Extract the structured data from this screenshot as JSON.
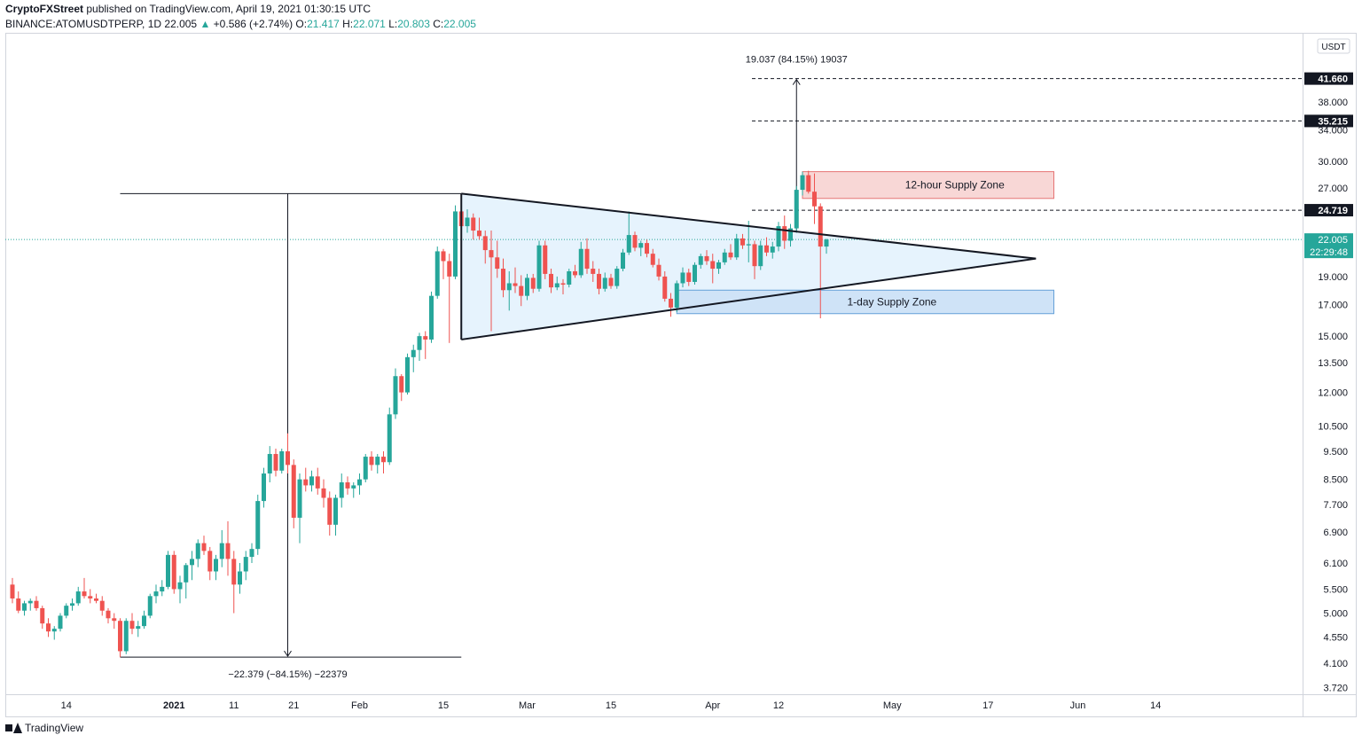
{
  "header": {
    "author": "CryptoFXStreet",
    "published": "published on TradingView.com, April 19, 2021 01:30:15 UTC"
  },
  "symbol_line": {
    "symbol": "BINANCE:ATOMUSDTPERP, 1D",
    "last": "22.005",
    "change": "+0.586 (+2.74%)",
    "o_label": "O:",
    "o": "21.417",
    "h_label": "H:",
    "h": "22.071",
    "l_label": "L:",
    "l": "20.803",
    "c_label": "C:",
    "c": "22.005"
  },
  "footer": {
    "brand": "TradingView"
  },
  "colors": {
    "up": "#26a69a",
    "down": "#ef5350",
    "triangle_fill": "#e3f2fd",
    "supply_red": "#f8d7d6",
    "supply_blue": "#cfe3f7",
    "last_price": "#26a69a"
  },
  "chart_data": {
    "type": "candlestick",
    "y_scale": "log",
    "currency_badge": "USDT",
    "ylim": [
      3.6,
      48
    ],
    "y_ticks": [
      "3.720",
      "4.100",
      "4.550",
      "5.000",
      "5.500",
      "6.100",
      "6.900",
      "7.700",
      "8.500",
      "9.500",
      "10.500",
      "12.000",
      "13.500",
      "15.000",
      "17.000",
      "19.000",
      "27.000",
      "30.000",
      "34.000",
      "38.000"
    ],
    "x_ticks": [
      "14",
      "2021",
      "11",
      "21",
      "Feb",
      "15",
      "Mar",
      "15",
      "Apr",
      "12",
      "May",
      "17",
      "Jun",
      "14"
    ],
    "candles": [
      {
        "date": "2020-12-05",
        "o": 5.6,
        "h": 5.75,
        "l": 5.2,
        "c": 5.3
      },
      {
        "date": "2020-12-06",
        "o": 5.3,
        "h": 5.45,
        "l": 5.0,
        "c": 5.05
      },
      {
        "date": "2020-12-07",
        "o": 5.05,
        "h": 5.25,
        "l": 4.95,
        "c": 5.2
      },
      {
        "date": "2020-12-08",
        "o": 5.2,
        "h": 5.3,
        "l": 5.05,
        "c": 5.25
      },
      {
        "date": "2020-12-09",
        "o": 5.25,
        "h": 5.35,
        "l": 5.05,
        "c": 5.1
      },
      {
        "date": "2020-12-10",
        "o": 5.1,
        "h": 5.15,
        "l": 4.7,
        "c": 4.8
      },
      {
        "date": "2020-12-11",
        "o": 4.8,
        "h": 4.9,
        "l": 4.55,
        "c": 4.65
      },
      {
        "date": "2020-12-12",
        "o": 4.65,
        "h": 4.75,
        "l": 4.5,
        "c": 4.7
      },
      {
        "date": "2020-12-13",
        "o": 4.7,
        "h": 5.0,
        "l": 4.65,
        "c": 4.95
      },
      {
        "date": "2020-12-14",
        "o": 4.95,
        "h": 5.2,
        "l": 4.9,
        "c": 5.15
      },
      {
        "date": "2020-12-15",
        "o": 5.15,
        "h": 5.3,
        "l": 5.05,
        "c": 5.2
      },
      {
        "date": "2020-12-16",
        "o": 5.2,
        "h": 5.55,
        "l": 5.15,
        "c": 5.45
      },
      {
        "date": "2020-12-17",
        "o": 5.45,
        "h": 5.75,
        "l": 5.3,
        "c": 5.35
      },
      {
        "date": "2020-12-18",
        "o": 5.35,
        "h": 5.5,
        "l": 5.2,
        "c": 5.3
      },
      {
        "date": "2020-12-19",
        "o": 5.3,
        "h": 5.4,
        "l": 5.2,
        "c": 5.25
      },
      {
        "date": "2020-12-20",
        "o": 5.25,
        "h": 5.35,
        "l": 4.95,
        "c": 5.05
      },
      {
        "date": "2020-12-21",
        "o": 5.05,
        "h": 5.1,
        "l": 4.8,
        "c": 4.9
      },
      {
        "date": "2020-12-22",
        "o": 4.9,
        "h": 5.0,
        "l": 4.7,
        "c": 4.85
      },
      {
        "date": "2020-12-23",
        "o": 4.85,
        "h": 4.9,
        "l": 4.2,
        "c": 4.3
      },
      {
        "date": "2020-12-24",
        "o": 4.3,
        "h": 4.9,
        "l": 4.25,
        "c": 4.85
      },
      {
        "date": "2020-12-25",
        "o": 4.85,
        "h": 5.0,
        "l": 4.6,
        "c": 4.7
      },
      {
        "date": "2020-12-26",
        "o": 4.7,
        "h": 4.85,
        "l": 4.55,
        "c": 4.75
      },
      {
        "date": "2020-12-27",
        "o": 4.75,
        "h": 5.05,
        "l": 4.7,
        "c": 4.95
      },
      {
        "date": "2020-12-28",
        "o": 4.95,
        "h": 5.4,
        "l": 4.9,
        "c": 5.35
      },
      {
        "date": "2020-12-29",
        "o": 5.35,
        "h": 5.6,
        "l": 5.2,
        "c": 5.45
      },
      {
        "date": "2020-12-30",
        "o": 5.45,
        "h": 5.7,
        "l": 5.35,
        "c": 5.55
      },
      {
        "date": "2020-12-31",
        "o": 5.55,
        "h": 6.4,
        "l": 5.5,
        "c": 6.3
      },
      {
        "date": "2021-01-01",
        "o": 6.3,
        "h": 6.4,
        "l": 5.4,
        "c": 5.5
      },
      {
        "date": "2021-01-02",
        "o": 5.5,
        "h": 5.8,
        "l": 5.2,
        "c": 5.65
      },
      {
        "date": "2021-01-03",
        "o": 5.65,
        "h": 6.1,
        "l": 5.3,
        "c": 6.05
      },
      {
        "date": "2021-01-04",
        "o": 6.05,
        "h": 6.4,
        "l": 5.7,
        "c": 6.2
      },
      {
        "date": "2021-01-05",
        "o": 6.2,
        "h": 6.7,
        "l": 6.0,
        "c": 6.6
      },
      {
        "date": "2021-01-06",
        "o": 6.6,
        "h": 6.8,
        "l": 6.3,
        "c": 6.4
      },
      {
        "date": "2021-01-07",
        "o": 6.4,
        "h": 6.5,
        "l": 5.7,
        "c": 5.9
      },
      {
        "date": "2021-01-08",
        "o": 5.9,
        "h": 6.3,
        "l": 5.7,
        "c": 6.2
      },
      {
        "date": "2021-01-09",
        "o": 6.2,
        "h": 6.95,
        "l": 6.0,
        "c": 6.6
      },
      {
        "date": "2021-01-10",
        "o": 6.6,
        "h": 7.2,
        "l": 5.8,
        "c": 6.2
      },
      {
        "date": "2021-01-11",
        "o": 6.2,
        "h": 6.4,
        "l": 5.0,
        "c": 5.6
      },
      {
        "date": "2021-01-12",
        "o": 5.6,
        "h": 6.1,
        "l": 5.4,
        "c": 5.9
      },
      {
        "date": "2021-01-13",
        "o": 5.9,
        "h": 6.4,
        "l": 5.7,
        "c": 6.25
      },
      {
        "date": "2021-01-14",
        "o": 6.25,
        "h": 6.6,
        "l": 6.1,
        "c": 6.45
      },
      {
        "date": "2021-01-15",
        "o": 6.45,
        "h": 8.0,
        "l": 6.3,
        "c": 7.8
      },
      {
        "date": "2021-01-16",
        "o": 7.8,
        "h": 8.9,
        "l": 7.6,
        "c": 8.7
      },
      {
        "date": "2021-01-17",
        "o": 8.7,
        "h": 9.7,
        "l": 8.4,
        "c": 9.4
      },
      {
        "date": "2021-01-18",
        "o": 9.4,
        "h": 9.6,
        "l": 8.6,
        "c": 8.8
      },
      {
        "date": "2021-01-19",
        "o": 8.8,
        "h": 9.6,
        "l": 8.7,
        "c": 9.5
      },
      {
        "date": "2021-01-20",
        "o": 9.5,
        "h": 10.2,
        "l": 8.7,
        "c": 9.0
      },
      {
        "date": "2021-01-21",
        "o": 9.0,
        "h": 9.2,
        "l": 7.0,
        "c": 7.3
      },
      {
        "date": "2021-01-22",
        "o": 7.3,
        "h": 8.7,
        "l": 6.6,
        "c": 8.5
      },
      {
        "date": "2021-01-23",
        "o": 8.5,
        "h": 8.9,
        "l": 8.1,
        "c": 8.3
      },
      {
        "date": "2021-01-24",
        "o": 8.3,
        "h": 8.8,
        "l": 8.1,
        "c": 8.6
      },
      {
        "date": "2021-01-25",
        "o": 8.6,
        "h": 8.9,
        "l": 8.0,
        "c": 8.2
      },
      {
        "date": "2021-01-26",
        "o": 8.2,
        "h": 8.5,
        "l": 7.6,
        "c": 7.9
      },
      {
        "date": "2021-01-27",
        "o": 7.9,
        "h": 8.1,
        "l": 6.8,
        "c": 7.1
      },
      {
        "date": "2021-01-28",
        "o": 7.1,
        "h": 8.0,
        "l": 6.8,
        "c": 7.9
      },
      {
        "date": "2021-01-29",
        "o": 7.9,
        "h": 8.7,
        "l": 7.6,
        "c": 8.4
      },
      {
        "date": "2021-01-30",
        "o": 8.4,
        "h": 8.6,
        "l": 8.0,
        "c": 8.2
      },
      {
        "date": "2021-01-31",
        "o": 8.2,
        "h": 8.4,
        "l": 7.9,
        "c": 8.3
      },
      {
        "date": "2021-02-01",
        "o": 8.3,
        "h": 8.7,
        "l": 8.0,
        "c": 8.5
      },
      {
        "date": "2021-02-02",
        "o": 8.5,
        "h": 9.4,
        "l": 8.4,
        "c": 9.3
      },
      {
        "date": "2021-02-03",
        "o": 9.3,
        "h": 9.5,
        "l": 8.8,
        "c": 9.0
      },
      {
        "date": "2021-02-04",
        "o": 9.0,
        "h": 9.4,
        "l": 8.7,
        "c": 9.3
      },
      {
        "date": "2021-02-05",
        "o": 9.3,
        "h": 9.5,
        "l": 8.7,
        "c": 9.1
      },
      {
        "date": "2021-02-06",
        "o": 9.1,
        "h": 11.3,
        "l": 9.0,
        "c": 11.0
      },
      {
        "date": "2021-02-07",
        "o": 11.0,
        "h": 13.2,
        "l": 10.8,
        "c": 12.8
      },
      {
        "date": "2021-02-08",
        "o": 12.8,
        "h": 12.9,
        "l": 11.6,
        "c": 12.0
      },
      {
        "date": "2021-02-09",
        "o": 12.0,
        "h": 14.0,
        "l": 11.9,
        "c": 13.8
      },
      {
        "date": "2021-02-10",
        "o": 13.8,
        "h": 14.5,
        "l": 13.0,
        "c": 14.2
      },
      {
        "date": "2021-02-11",
        "o": 14.2,
        "h": 15.2,
        "l": 13.6,
        "c": 15.0
      },
      {
        "date": "2021-02-12",
        "o": 15.0,
        "h": 15.3,
        "l": 13.7,
        "c": 14.8
      },
      {
        "date": "2021-02-13",
        "o": 14.8,
        "h": 17.9,
        "l": 14.6,
        "c": 17.6
      },
      {
        "date": "2021-02-14",
        "o": 17.6,
        "h": 21.4,
        "l": 17.4,
        "c": 21.0
      },
      {
        "date": "2021-02-15",
        "o": 21.0,
        "h": 21.2,
        "l": 18.8,
        "c": 20.2
      },
      {
        "date": "2021-02-16",
        "o": 20.2,
        "h": 20.8,
        "l": 14.6,
        "c": 19.0
      },
      {
        "date": "2021-02-17",
        "o": 19.0,
        "h": 25.2,
        "l": 18.8,
        "c": 24.6
      },
      {
        "date": "2021-02-18",
        "o": 24.6,
        "h": 26.3,
        "l": 22.8,
        "c": 23.2
      },
      {
        "date": "2021-02-19",
        "o": 23.2,
        "h": 24.8,
        "l": 22.6,
        "c": 24.0
      },
      {
        "date": "2021-02-20",
        "o": 24.0,
        "h": 24.4,
        "l": 22.0,
        "c": 22.8
      },
      {
        "date": "2021-02-21",
        "o": 22.8,
        "h": 24.0,
        "l": 22.0,
        "c": 22.3
      },
      {
        "date": "2021-02-22",
        "o": 22.3,
        "h": 22.8,
        "l": 20.0,
        "c": 21.1
      },
      {
        "date": "2021-02-23",
        "o": 21.1,
        "h": 22.8,
        "l": 15.3,
        "c": 20.5
      },
      {
        "date": "2021-02-24",
        "o": 20.5,
        "h": 21.9,
        "l": 18.9,
        "c": 19.6
      },
      {
        "date": "2021-02-25",
        "o": 19.6,
        "h": 20.4,
        "l": 17.5,
        "c": 18.0
      },
      {
        "date": "2021-02-26",
        "o": 18.0,
        "h": 19.4,
        "l": 16.6,
        "c": 18.5
      },
      {
        "date": "2021-02-27",
        "o": 18.5,
        "h": 19.7,
        "l": 17.8,
        "c": 18.3
      },
      {
        "date": "2021-02-28",
        "o": 18.3,
        "h": 19.1,
        "l": 16.9,
        "c": 17.6
      },
      {
        "date": "2021-03-01",
        "o": 17.6,
        "h": 19.2,
        "l": 17.3,
        "c": 18.9
      },
      {
        "date": "2021-03-02",
        "o": 18.9,
        "h": 19.2,
        "l": 17.8,
        "c": 18.1
      },
      {
        "date": "2021-03-03",
        "o": 18.1,
        "h": 21.9,
        "l": 17.9,
        "c": 21.5
      },
      {
        "date": "2021-03-04",
        "o": 21.5,
        "h": 21.9,
        "l": 18.8,
        "c": 19.2
      },
      {
        "date": "2021-03-05",
        "o": 19.2,
        "h": 19.6,
        "l": 17.8,
        "c": 18.2
      },
      {
        "date": "2021-03-06",
        "o": 18.2,
        "h": 19.0,
        "l": 18.0,
        "c": 18.5
      },
      {
        "date": "2021-03-07",
        "o": 18.5,
        "h": 18.8,
        "l": 17.7,
        "c": 18.4
      },
      {
        "date": "2021-03-08",
        "o": 18.4,
        "h": 19.6,
        "l": 18.2,
        "c": 19.4
      },
      {
        "date": "2021-03-09",
        "o": 19.4,
        "h": 19.9,
        "l": 18.9,
        "c": 19.1
      },
      {
        "date": "2021-03-10",
        "o": 19.1,
        "h": 21.8,
        "l": 18.9,
        "c": 21.2
      },
      {
        "date": "2021-03-11",
        "o": 21.2,
        "h": 22.1,
        "l": 19.2,
        "c": 19.6
      },
      {
        "date": "2021-03-12",
        "o": 19.6,
        "h": 20.2,
        "l": 18.6,
        "c": 19.2
      },
      {
        "date": "2021-03-13",
        "o": 19.2,
        "h": 19.6,
        "l": 17.7,
        "c": 18.1
      },
      {
        "date": "2021-03-14",
        "o": 18.1,
        "h": 19.3,
        "l": 17.9,
        "c": 18.9
      },
      {
        "date": "2021-03-15",
        "o": 18.9,
        "h": 19.2,
        "l": 18.1,
        "c": 18.3
      },
      {
        "date": "2021-03-16",
        "o": 18.3,
        "h": 19.8,
        "l": 18.1,
        "c": 19.6
      },
      {
        "date": "2021-03-17",
        "o": 19.6,
        "h": 21.2,
        "l": 19.4,
        "c": 20.9
      },
      {
        "date": "2021-03-18",
        "o": 20.9,
        "h": 24.6,
        "l": 20.7,
        "c": 22.4
      },
      {
        "date": "2021-03-19",
        "o": 22.4,
        "h": 22.7,
        "l": 21.0,
        "c": 21.3
      },
      {
        "date": "2021-03-20",
        "o": 21.3,
        "h": 21.9,
        "l": 20.6,
        "c": 21.7
      },
      {
        "date": "2021-03-21",
        "o": 21.7,
        "h": 22.0,
        "l": 20.5,
        "c": 20.8
      },
      {
        "date": "2021-03-22",
        "o": 20.8,
        "h": 21.2,
        "l": 19.7,
        "c": 19.9
      },
      {
        "date": "2021-03-23",
        "o": 19.9,
        "h": 20.4,
        "l": 18.7,
        "c": 19.0
      },
      {
        "date": "2021-03-24",
        "o": 19.0,
        "h": 19.4,
        "l": 17.2,
        "c": 17.4
      },
      {
        "date": "2021-03-25",
        "o": 17.4,
        "h": 17.8,
        "l": 16.2,
        "c": 16.8
      },
      {
        "date": "2021-03-26",
        "o": 16.8,
        "h": 18.7,
        "l": 16.5,
        "c": 18.5
      },
      {
        "date": "2021-03-27",
        "o": 18.5,
        "h": 19.7,
        "l": 18.2,
        "c": 19.3
      },
      {
        "date": "2021-03-28",
        "o": 19.3,
        "h": 19.6,
        "l": 18.3,
        "c": 18.6
      },
      {
        "date": "2021-03-29",
        "o": 18.6,
        "h": 20.1,
        "l": 18.4,
        "c": 19.9
      },
      {
        "date": "2021-03-30",
        "o": 19.9,
        "h": 20.8,
        "l": 19.6,
        "c": 20.6
      },
      {
        "date": "2021-03-31",
        "o": 20.6,
        "h": 21.1,
        "l": 19.9,
        "c": 20.2
      },
      {
        "date": "2021-04-01",
        "o": 20.2,
        "h": 20.8,
        "l": 18.5,
        "c": 19.6
      },
      {
        "date": "2021-04-02",
        "o": 19.6,
        "h": 20.3,
        "l": 19.2,
        "c": 20.1
      },
      {
        "date": "2021-04-03",
        "o": 20.1,
        "h": 21.2,
        "l": 19.9,
        "c": 20.9
      },
      {
        "date": "2021-04-04",
        "o": 20.9,
        "h": 21.6,
        "l": 20.3,
        "c": 20.5
      },
      {
        "date": "2021-04-05",
        "o": 20.5,
        "h": 22.5,
        "l": 20.3,
        "c": 22.1
      },
      {
        "date": "2021-04-06",
        "o": 22.1,
        "h": 22.5,
        "l": 21.2,
        "c": 21.5
      },
      {
        "date": "2021-04-07",
        "o": 21.5,
        "h": 23.7,
        "l": 20.1,
        "c": 21.6
      },
      {
        "date": "2021-04-08",
        "o": 21.6,
        "h": 21.9,
        "l": 18.8,
        "c": 19.8
      },
      {
        "date": "2021-04-09",
        "o": 19.8,
        "h": 21.9,
        "l": 19.5,
        "c": 21.5
      },
      {
        "date": "2021-04-10",
        "o": 21.5,
        "h": 22.2,
        "l": 20.6,
        "c": 20.9
      },
      {
        "date": "2021-04-11",
        "o": 20.9,
        "h": 21.8,
        "l": 20.4,
        "c": 21.4
      },
      {
        "date": "2021-04-12",
        "o": 21.4,
        "h": 23.6,
        "l": 21.0,
        "c": 23.2
      },
      {
        "date": "2021-04-13",
        "o": 23.2,
        "h": 24.2,
        "l": 21.2,
        "c": 21.9
      },
      {
        "date": "2021-04-14",
        "o": 21.9,
        "h": 23.4,
        "l": 21.4,
        "c": 23.0
      },
      {
        "date": "2021-04-15",
        "o": 23.0,
        "h": 27.2,
        "l": 22.6,
        "c": 26.8
      },
      {
        "date": "2021-04-16",
        "o": 26.8,
        "h": 28.8,
        "l": 26.2,
        "c": 28.4
      },
      {
        "date": "2021-04-17",
        "o": 28.4,
        "h": 28.9,
        "l": 26.4,
        "c": 26.6
      },
      {
        "date": "2021-04-18",
        "o": 26.6,
        "h": 28.6,
        "l": 23.4,
        "c": 25.1
      },
      {
        "date": "2021-04-19",
        "o": 25.1,
        "h": 25.4,
        "l": 16.1,
        "c": 21.4
      },
      {
        "date": "2021-04-20",
        "o": 21.4,
        "h": 22.07,
        "l": 20.8,
        "c": 22.005
      }
    ],
    "triangle": {
      "points": [
        {
          "date": "2021-02-18",
          "price": 26.4
        },
        {
          "date": "2021-05-25",
          "price": 20.4
        },
        {
          "date": "2021-02-18",
          "price": 14.8
        }
      ]
    },
    "trendlines": [
      {
        "from": {
          "date": "2021-02-18",
          "price": 26.4
        },
        "to": {
          "date": "2021-05-25",
          "price": 20.4
        }
      },
      {
        "from": {
          "date": "2021-02-18",
          "price": 14.8
        },
        "to": {
          "date": "2021-05-25",
          "price": 20.4
        }
      }
    ],
    "zones": [
      {
        "label": "12-hour Supply Zone",
        "from": "2021-04-16",
        "to": "2021-05-28",
        "top": 28.8,
        "bottom": 25.9,
        "color": "red"
      },
      {
        "label": "1-day Supply Zone",
        "from": "2021-03-26",
        "to": "2021-05-28",
        "top": 18.0,
        "bottom": 16.4,
        "color": "blue"
      }
    ],
    "measure_down": {
      "label": "−22.379 (−84.15%) −22379",
      "x_date": "2021-01-20",
      "top_price": 26.4,
      "bottom_price": 4.2,
      "top_line": {
        "from": "2020-12-23",
        "to": "2021-02-18"
      },
      "bottom_line": {
        "from": "2020-12-23",
        "to": "2021-02-18"
      }
    },
    "measure_up": {
      "label": "19.037 (84.15%) 19037",
      "x_date": "2021-04-15",
      "from_price": 22.6,
      "to_price": 41.66
    },
    "dashed_levels": [
      {
        "price": 41.66,
        "label": "41.660",
        "from": "2021-04-12"
      },
      {
        "price": 35.215,
        "label": "35.215",
        "from": "2021-04-12"
      },
      {
        "price": 24.719,
        "label": "24.719",
        "from": "2021-04-12"
      }
    ],
    "last_price": {
      "price": 22.005,
      "label": "22.005",
      "countdown": "22:29:48"
    }
  }
}
